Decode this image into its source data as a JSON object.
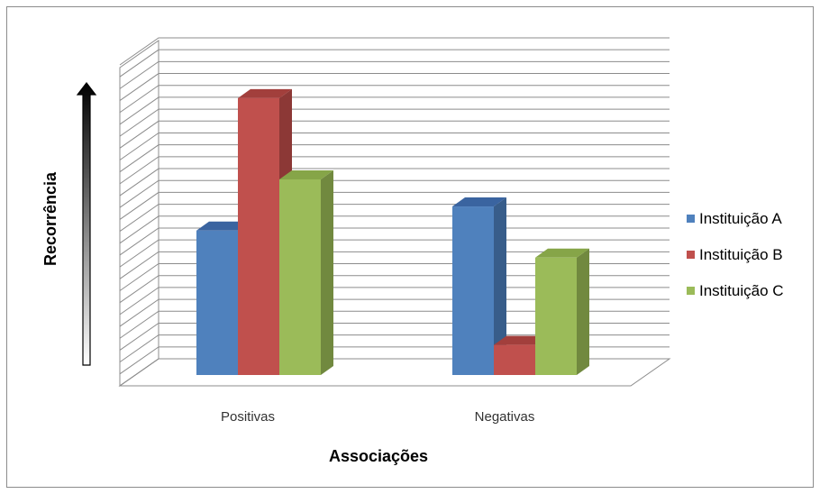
{
  "chart_data": {
    "type": "bar",
    "title": "",
    "xlabel": "Associações",
    "ylabel": "Recorrência",
    "categories": [
      "Positivas",
      "Negativas"
    ],
    "series": [
      {
        "name": "Instituição A",
        "color": "#4f81bd",
        "side": "#385d8a",
        "top": "#3a64a0",
        "values": [
          48,
          56
        ]
      },
      {
        "name": "Instituição B",
        "color": "#c0504d",
        "side": "#8c3836",
        "top": "#a23f3c",
        "values": [
          92,
          10
        ]
      },
      {
        "name": "Instituição C",
        "color": "#9bbb59",
        "side": "#71893f",
        "top": "#86a548",
        "values": [
          65,
          39
        ]
      }
    ],
    "ylim": [
      0,
      100
    ],
    "grid": true,
    "legend": "right",
    "y_axis_arrow": "gradient-up"
  }
}
